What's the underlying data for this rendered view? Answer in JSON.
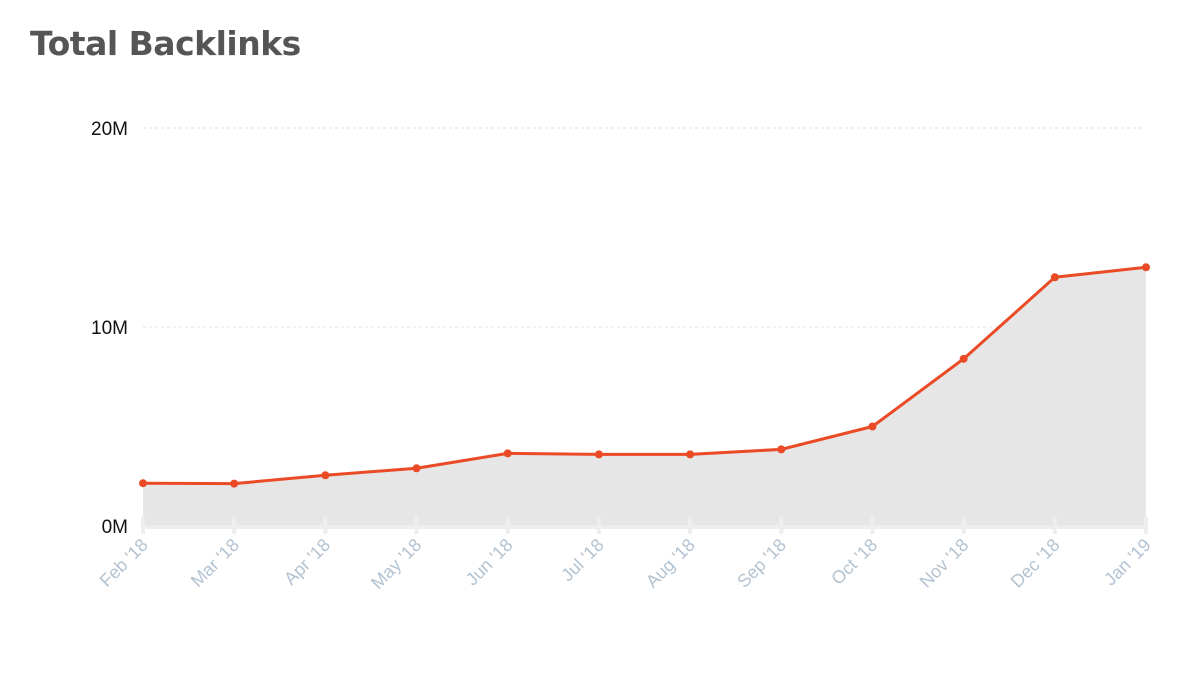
{
  "chart_data": {
    "type": "area",
    "title": "Total Backlinks",
    "xlabel": "",
    "ylabel": "",
    "categories": [
      "Feb '18",
      "Mar '18",
      "Apr '18",
      "May '18",
      "Jun '18",
      "Jul '18",
      "Aug '18",
      "Sep '18",
      "Oct '18",
      "Nov '18",
      "Dec '18",
      "Jan '19"
    ],
    "series": [
      {
        "values": [
          2.15,
          2.13,
          2.55,
          2.9,
          3.65,
          3.6,
          3.6,
          3.85,
          5.0,
          8.4,
          12.5,
          13.0
        ]
      }
    ],
    "ylim": [
      0,
      20
    ],
    "yticks": [
      {
        "value": 0,
        "label": "0M"
      },
      {
        "value": 10,
        "label": "10M"
      },
      {
        "value": 20,
        "label": "20M"
      }
    ],
    "grid": true,
    "legend": "none",
    "colors": {
      "line": "#ea4b26",
      "fill": "#e6e6e6",
      "grid": "#e2e2e2",
      "x_tick_text": "#b3c3d1"
    }
  }
}
